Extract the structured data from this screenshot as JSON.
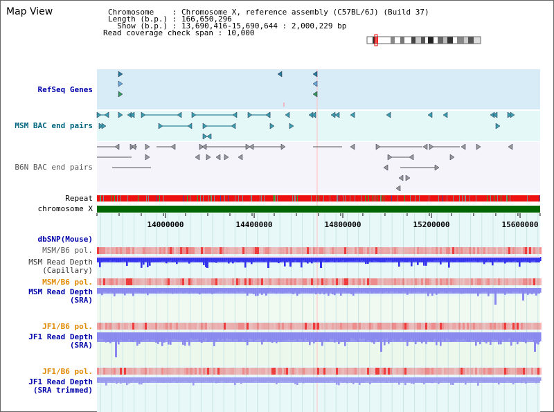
{
  "title": "Map View",
  "info": {
    "chromosome": "Chromosome    : Chromosome X, reference assembly (C57BL/6J) (Build 37)",
    "length": "Length (b.p.) : 166,650,296",
    "show": "  Show (b.p.) : 13,690,416-15,690,644 : 2,000,229 bp",
    "coverage": "Read coverage check span : 10,000"
  },
  "tracks": {
    "refseq": "RefSeq Genes",
    "msm_bac": "MSM BAC end pairs",
    "b6n_bac": "B6N BAC end pairs",
    "repeat": "Repeat",
    "chromosome": "chromosome X",
    "dbsnp": "dbSNP(Mouse)",
    "msm_b6_pol_1": "MSM/B6 pol.",
    "msm_depth_cap": "MSM Read Depth\n(Capillary)",
    "msm_b6_pol_2": "MSM/B6 pol.",
    "msm_depth_sra": "MSM Read Depth\n(SRA)",
    "jf1_b6_pol_1": "JF1/B6 pol.",
    "jf1_depth_sra": "JF1 Read Depth\n(SRA)",
    "jf1_b6_pol_2": "JF1/B6 pol.",
    "jf1_depth_trim": "JF1 Read Depth\n(SRA trimmed)"
  },
  "axis": {
    "ticks": [
      "14000000",
      "14400000",
      "14800000",
      "15200000",
      "15600000"
    ],
    "tick_values": [
      14000000,
      14400000,
      14800000,
      15200000,
      15600000
    ],
    "range": [
      13690416,
      15690644
    ]
  },
  "colors": {
    "refseq_bg": "#d8ecf8",
    "bac_bg": "#e4f8f8",
    "chromosome": "#006600",
    "repeat_red": "#ee1111",
    "pol": "#f08080",
    "pol_orange": "#ff6666",
    "depth_capillary": "#3333ee",
    "depth_sra": "#8888ee",
    "bac_line": "#006680",
    "b6n_line": "#555555"
  }
}
